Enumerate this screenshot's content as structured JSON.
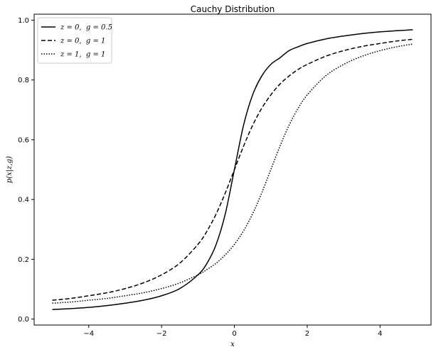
{
  "chart_data": {
    "type": "line",
    "title": "Cauchy Distribution",
    "xlabel": "x",
    "ylabel": "p(x|z,g)",
    "xlim": [
      -5.5,
      5.4
    ],
    "ylim": [
      -0.02,
      1.02
    ],
    "xticks": [
      -4,
      -2,
      0,
      2,
      4
    ],
    "xtick_labels": [
      "−4",
      "−2",
      "0",
      "2",
      "4"
    ],
    "yticks": [
      0.0,
      0.2,
      0.4,
      0.6,
      0.8,
      1.0
    ],
    "ytick_labels": [
      "0.0",
      "0.2",
      "0.4",
      "0.6",
      "0.8",
      "1.0"
    ],
    "grid": false,
    "legend_position": "top-left",
    "x": [
      -5,
      -4.5,
      -4,
      -3.5,
      -3,
      -2.5,
      -2,
      -1.5,
      -1,
      -0.75,
      -0.5,
      -0.25,
      0,
      0.25,
      0.5,
      0.75,
      1,
      1.25,
      1.5,
      1.75,
      2,
      2.5,
      3,
      3.5,
      4,
      4.5,
      4.9
    ],
    "series": [
      {
        "name": "z = 0,  g = 0.5",
        "line_style": "solid",
        "values": [
          0.032,
          0.035,
          0.039,
          0.045,
          0.053,
          0.063,
          0.078,
          0.102,
          0.148,
          0.187,
          0.25,
          0.352,
          0.5,
          0.648,
          0.75,
          0.813,
          0.852,
          0.874,
          0.898,
          0.911,
          0.922,
          0.937,
          0.947,
          0.955,
          0.961,
          0.965,
          0.968
        ]
      },
      {
        "name": "z = 0,  g = 1",
        "line_style": "dashed",
        "values": [
          0.063,
          0.069,
          0.078,
          0.088,
          0.102,
          0.121,
          0.148,
          0.187,
          0.25,
          0.295,
          0.352,
          0.422,
          0.5,
          0.578,
          0.648,
          0.705,
          0.75,
          0.786,
          0.813,
          0.835,
          0.852,
          0.879,
          0.898,
          0.912,
          0.922,
          0.931,
          0.936
        ]
      },
      {
        "name": "z = 1,  g = 1",
        "line_style": "dotted",
        "values": [
          0.053,
          0.057,
          0.063,
          0.069,
          0.078,
          0.088,
          0.102,
          0.121,
          0.148,
          0.166,
          0.187,
          0.215,
          0.25,
          0.295,
          0.352,
          0.422,
          0.5,
          0.578,
          0.648,
          0.705,
          0.75,
          0.813,
          0.852,
          0.879,
          0.898,
          0.912,
          0.92
        ]
      }
    ]
  }
}
